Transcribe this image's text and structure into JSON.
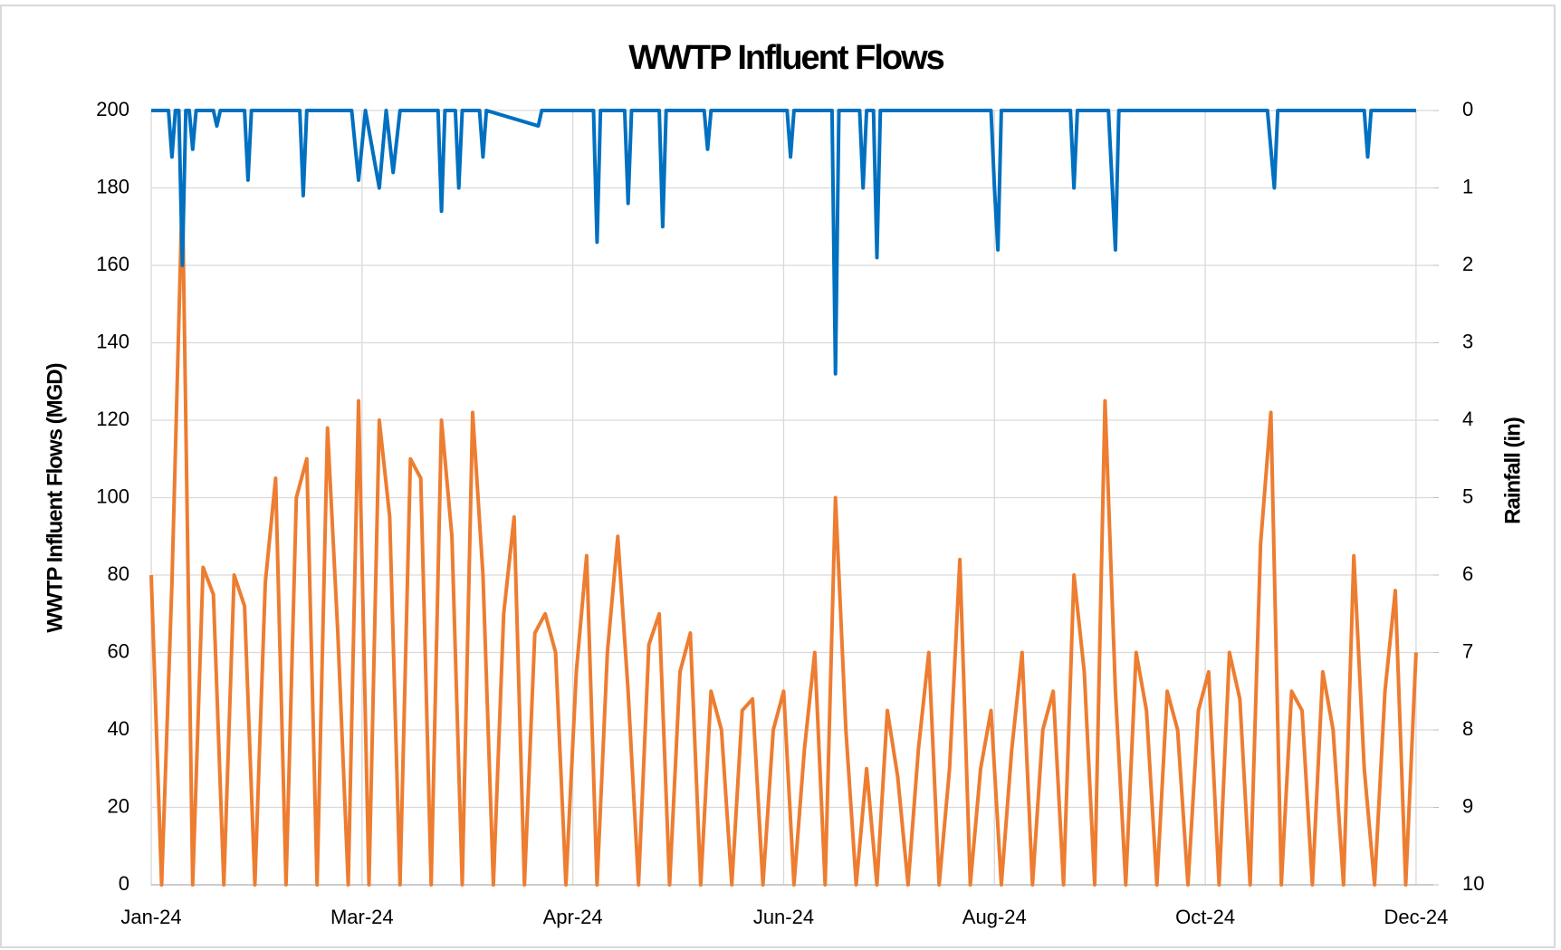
{
  "chart_data": {
    "type": "line",
    "title": "WWTP Influent Flows",
    "y_label": "WWTP Influent Flows (MGD)",
    "y2_label": "Rainfall (in)",
    "xlim": [
      0,
      371
    ],
    "xticks": [
      {
        "value": 0,
        "label": "Jan-24"
      },
      {
        "value": 61,
        "label": "Mar-24"
      },
      {
        "value": 122,
        "label": "Apr-24"
      },
      {
        "value": 183,
        "label": "Jun-24"
      },
      {
        "value": 244,
        "label": "Aug-24"
      },
      {
        "value": 305,
        "label": "Oct-24"
      },
      {
        "value": 366,
        "label": "Dec-24"
      }
    ],
    "ylim": [
      0,
      200
    ],
    "yticks": [
      0,
      20,
      40,
      60,
      80,
      100,
      120,
      140,
      160,
      180,
      200
    ],
    "y2lim": [
      0,
      10
    ],
    "y2ticks": [
      0,
      1,
      2,
      3,
      4,
      5,
      6,
      7,
      8,
      9,
      10
    ],
    "y2_inverted": true,
    "grid": true,
    "series": [
      {
        "color": "#ed7d31",
        "axis": "y",
        "x": [
          0,
          3,
          6,
          9,
          12,
          15,
          18,
          21,
          24,
          27,
          30,
          33,
          36,
          39,
          42,
          45,
          48,
          51,
          54,
          57,
          60,
          63,
          66,
          69,
          72,
          75,
          78,
          81,
          84,
          87,
          90,
          93,
          96,
          99,
          102,
          105,
          108,
          111,
          114,
          117,
          120,
          123,
          126,
          129,
          132,
          135,
          138,
          141,
          144,
          147,
          150,
          153,
          156,
          159,
          162,
          165,
          168,
          171,
          174,
          177,
          180,
          183,
          186,
          189,
          192,
          195,
          198,
          201,
          204,
          207,
          210,
          213,
          216,
          219,
          222,
          225,
          228,
          231,
          234,
          237,
          240,
          243,
          246,
          249,
          252,
          255,
          258,
          261,
          264,
          267,
          270,
          273,
          276,
          279,
          282,
          285,
          288,
          291,
          294,
          297,
          300,
          303,
          306,
          309,
          312,
          315,
          318,
          321,
          324,
          327,
          330,
          333,
          336,
          339,
          342,
          345,
          348,
          351,
          354,
          357,
          360,
          363,
          366
        ],
        "values": [
          80,
          0,
          78,
          180,
          0,
          82,
          75,
          0,
          80,
          72,
          0,
          78,
          105,
          0,
          100,
          110,
          0,
          118,
          65,
          0,
          125,
          0,
          120,
          95,
          0,
          110,
          105,
          0,
          120,
          90,
          0,
          122,
          80,
          0,
          70,
          95,
          0,
          65,
          70,
          60,
          0,
          55,
          85,
          0,
          60,
          90,
          50,
          0,
          62,
          70,
          0,
          55,
          65,
          0,
          50,
          40,
          0,
          45,
          48,
          0,
          40,
          50,
          0,
          35,
          60,
          0,
          100,
          40,
          0,
          30,
          0,
          45,
          28,
          0,
          35,
          60,
          0,
          30,
          84,
          0,
          30,
          45,
          0,
          35,
          60,
          0,
          40,
          50,
          0,
          80,
          55,
          0,
          125,
          50,
          0,
          60,
          45,
          0,
          50,
          40,
          0,
          45,
          55,
          0,
          60,
          48,
          0,
          88,
          122,
          0,
          50,
          45,
          0,
          55,
          40,
          0,
          85,
          30,
          0,
          50,
          76,
          0,
          60
        ]
      },
      {
        "color": "#0070c0",
        "axis": "y2",
        "x": [
          0,
          5,
          6,
          7,
          8,
          9,
          10,
          11,
          12,
          13,
          18,
          19,
          20,
          27,
          28,
          29,
          43,
          44,
          45,
          58,
          60,
          62,
          66,
          68,
          70,
          72,
          83,
          84,
          85,
          88,
          89,
          90,
          95,
          96,
          97,
          112,
          113,
          128,
          129,
          130,
          137,
          138,
          139,
          147,
          148,
          149,
          160,
          161,
          162,
          184,
          185,
          186,
          197,
          198,
          199,
          205,
          206,
          207,
          209,
          210,
          211,
          243,
          244,
          245,
          246,
          266,
          267,
          268,
          277,
          279,
          280,
          323,
          325,
          326,
          351,
          352,
          353,
          366
        ],
        "values": [
          0,
          0,
          0.6,
          0,
          0,
          2.0,
          0,
          0,
          0.5,
          0,
          0,
          0.2,
          0,
          0,
          0.9,
          0,
          0,
          1.1,
          0,
          0,
          0.9,
          0,
          1.0,
          0,
          0.8,
          0,
          0,
          1.3,
          0,
          0,
          1.0,
          0,
          0,
          0.6,
          0,
          0.2,
          0,
          0,
          1.7,
          0,
          0,
          1.2,
          0,
          0,
          1.5,
          0,
          0,
          0.5,
          0,
          0,
          0.6,
          0,
          0,
          3.4,
          0,
          0,
          1.0,
          0,
          0,
          1.9,
          0,
          0,
          1.0,
          1.8,
          0,
          0,
          1.0,
          0,
          0,
          1.8,
          0,
          0,
          1.0,
          0,
          0,
          0.6,
          0,
          0
        ]
      }
    ]
  }
}
